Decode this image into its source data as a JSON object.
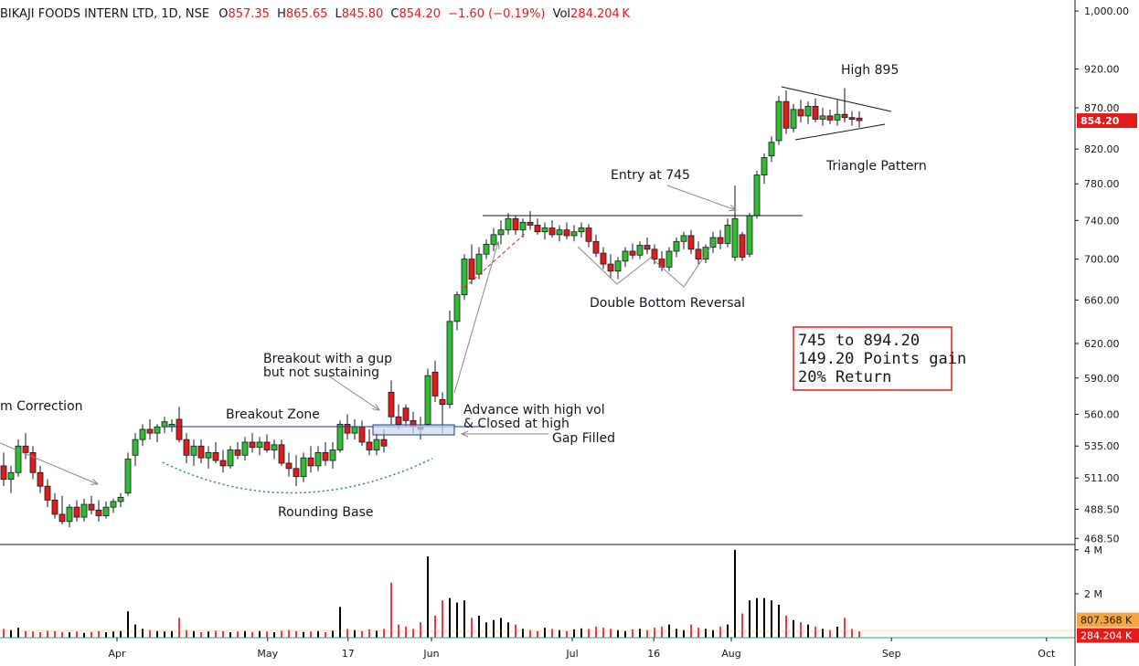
{
  "chart_data": {
    "type": "candlestick",
    "header": {
      "name": "BIKAJI FOODS INTERN LTD, 1D, NSE",
      "o": "O",
      "open": "857.35",
      "h": "H",
      "high": "865.65",
      "l": "L",
      "low": "845.80",
      "c": "C",
      "close": "854.20",
      "change": "−1.60 (−0.19%)",
      "vol": "Vol",
      "volume": "284.204 K"
    },
    "log_scale": true,
    "ylim": [
      465,
      1016
    ],
    "yticks": [
      {
        "value": 1000,
        "label": "1,000.00"
      },
      {
        "value": 920,
        "label": "920.00"
      },
      {
        "value": 870,
        "label": "870.00"
      },
      {
        "value": 820,
        "label": "820.00"
      },
      {
        "value": 780,
        "label": "780.00"
      },
      {
        "value": 740,
        "label": "740.00"
      },
      {
        "value": 700,
        "label": "700.00"
      },
      {
        "value": 660,
        "label": "660.00"
      },
      {
        "value": 620,
        "label": "620.00"
      },
      {
        "value": 590,
        "label": "590.00"
      },
      {
        "value": 560,
        "label": "560.00"
      },
      {
        "value": 535,
        "label": "535.00"
      },
      {
        "value": 511,
        "label": "511.00"
      },
      {
        "value": 488.5,
        "label": "488.50"
      },
      {
        "value": 468.5,
        "label": "468.50"
      }
    ],
    "xticks": [
      {
        "value": 15.5,
        "label": "Apr"
      },
      {
        "value": 36.1,
        "label": "May"
      },
      {
        "value": 47.1,
        "label": "17"
      },
      {
        "value": 58.5,
        "label": "Jun"
      },
      {
        "value": 77.75,
        "label": "Jul"
      },
      {
        "value": 88.9,
        "label": "16"
      },
      {
        "value": 99.5,
        "label": "Aug"
      },
      {
        "value": 121.4,
        "label": "Sep"
      },
      {
        "value": 142.6,
        "label": "Oct"
      }
    ],
    "up_color": "#2ebd2e",
    "down_color": "#e31b1b",
    "volume_up_color": "#000000",
    "volume_down_color": "#f23645",
    "candles": [
      [
        520,
        530,
        505,
        510
      ],
      [
        510,
        520,
        500,
        515
      ],
      [
        515,
        540,
        512,
        535
      ],
      [
        535,
        545,
        525,
        530
      ],
      [
        530,
        535,
        510,
        515
      ],
      [
        515,
        520,
        500,
        505
      ],
      [
        505,
        510,
        490,
        495
      ],
      [
        495,
        500,
        482,
        485
      ],
      [
        485,
        498,
        478,
        480
      ],
      [
        480,
        492,
        476,
        490
      ],
      [
        490,
        495,
        480,
        483
      ],
      [
        483,
        496,
        480,
        492
      ],
      [
        492,
        498,
        485,
        488
      ],
      [
        488,
        495,
        480,
        484
      ],
      [
        484,
        494,
        482,
        490
      ],
      [
        490,
        496,
        486,
        494
      ],
      [
        494,
        500,
        490,
        497
      ],
      [
        500,
        530,
        498,
        525
      ],
      [
        528,
        545,
        520,
        540
      ],
      [
        540,
        552,
        535,
        548
      ],
      [
        548,
        556,
        540,
        545
      ],
      [
        545,
        552,
        538,
        550
      ],
      [
        550,
        558,
        545,
        554
      ],
      [
        550,
        556,
        546,
        552
      ],
      [
        556,
        566,
        538,
        540
      ],
      [
        540,
        545,
        522,
        528
      ],
      [
        528,
        540,
        520,
        535
      ],
      [
        535,
        540,
        522,
        526
      ],
      [
        526,
        535,
        518,
        530
      ],
      [
        530,
        538,
        522,
        524
      ],
      [
        524,
        532,
        515,
        520
      ],
      [
        520,
        535,
        518,
        532
      ],
      [
        532,
        538,
        525,
        528
      ],
      [
        528,
        542,
        524,
        538
      ],
      [
        538,
        545,
        530,
        534
      ],
      [
        534,
        542,
        528,
        538
      ],
      [
        538,
        544,
        530,
        532
      ],
      [
        532,
        540,
        525,
        536
      ],
      [
        536,
        540,
        520,
        522
      ],
      [
        522,
        530,
        512,
        518
      ],
      [
        518,
        528,
        505,
        512
      ],
      [
        512,
        530,
        508,
        526
      ],
      [
        526,
        535,
        515,
        520
      ],
      [
        520,
        535,
        516,
        530
      ],
      [
        530,
        538,
        520,
        524
      ],
      [
        524,
        538,
        518,
        532
      ],
      [
        532,
        555,
        530,
        552
      ],
      [
        552,
        560,
        540,
        545
      ],
      [
        545,
        556,
        540,
        550
      ],
      [
        550,
        555,
        535,
        538
      ],
      [
        538,
        548,
        528,
        532
      ],
      [
        532,
        545,
        528,
        540
      ],
      [
        540,
        548,
        530,
        535
      ],
      [
        578,
        588,
        552,
        558
      ],
      [
        558,
        568,
        548,
        552
      ],
      [
        565,
        568,
        550,
        555
      ],
      [
        555,
        562,
        545,
        550
      ],
      [
        550,
        558,
        540,
        548
      ],
      [
        552,
        598,
        550,
        592
      ],
      [
        595,
        605,
        570,
        575
      ],
      [
        572,
        578,
        545,
        568
      ],
      [
        568,
        650,
        565,
        640
      ],
      [
        640,
        668,
        632,
        665
      ],
      [
        665,
        705,
        660,
        700
      ],
      [
        700,
        715,
        675,
        680
      ],
      [
        685,
        712,
        680,
        705
      ],
      [
        705,
        720,
        700,
        715
      ],
      [
        715,
        732,
        708,
        725
      ],
      [
        725,
        740,
        715,
        730
      ],
      [
        730,
        748,
        725,
        742
      ],
      [
        742,
        745,
        725,
        730
      ],
      [
        730,
        742,
        722,
        738
      ],
      [
        738,
        750,
        730,
        735
      ],
      [
        735,
        742,
        725,
        728
      ],
      [
        728,
        738,
        720,
        732
      ],
      [
        732,
        740,
        722,
        725
      ],
      [
        725,
        735,
        718,
        730
      ],
      [
        730,
        738,
        720,
        724
      ],
      [
        724,
        735,
        718,
        728
      ],
      [
        728,
        738,
        722,
        732
      ],
      [
        732,
        736,
        712,
        718
      ],
      [
        718,
        725,
        702,
        706
      ],
      [
        706,
        712,
        690,
        695
      ],
      [
        695,
        705,
        682,
        688
      ],
      [
        688,
        702,
        680,
        698
      ],
      [
        698,
        712,
        692,
        708
      ],
      [
        708,
        716,
        700,
        704
      ],
      [
        704,
        718,
        700,
        714
      ],
      [
        714,
        722,
        705,
        710
      ],
      [
        710,
        715,
        695,
        700
      ],
      [
        700,
        708,
        688,
        692
      ],
      [
        692,
        712,
        688,
        708
      ],
      [
        708,
        722,
        702,
        718
      ],
      [
        718,
        728,
        710,
        724
      ],
      [
        724,
        730,
        705,
        710
      ],
      [
        710,
        718,
        695,
        700
      ],
      [
        700,
        715,
        696,
        712
      ],
      [
        712,
        728,
        706,
        722
      ],
      [
        722,
        730,
        710,
        716
      ],
      [
        716,
        742,
        712,
        735
      ],
      [
        702,
        778,
        698,
        742
      ],
      [
        725,
        728,
        698,
        702
      ],
      [
        705,
        748,
        702,
        745
      ],
      [
        745,
        795,
        742,
        790
      ],
      [
        790,
        815,
        780,
        810
      ],
      [
        812,
        835,
        805,
        828
      ],
      [
        830,
        885,
        825,
        878
      ],
      [
        878,
        892,
        838,
        845
      ],
      [
        845,
        875,
        840,
        868
      ],
      [
        868,
        880,
        852,
        860
      ],
      [
        860,
        878,
        850,
        872
      ],
      [
        872,
        882,
        852,
        856
      ],
      [
        856,
        870,
        848,
        860
      ],
      [
        860,
        868,
        850,
        855
      ],
      [
        855,
        880,
        848,
        862
      ],
      [
        862,
        895,
        852,
        858
      ],
      [
        858,
        866,
        848,
        855.8
      ],
      [
        857.35,
        865.65,
        845.8,
        854.2
      ]
    ],
    "volume": [
      400000,
      350000,
      450000,
      300000,
      280000,
      250000,
      320000,
      300000,
      260000,
      240000,
      280000,
      220000,
      260000,
      300000,
      250000,
      280000,
      300000,
      1200000,
      600000,
      400000,
      350000,
      300000,
      280000,
      300000,
      900000,
      350000,
      300000,
      250000,
      280000,
      320000,
      300000,
      250000,
      280000,
      300000,
      260000,
      300000,
      280000,
      250000,
      320000,
      350000,
      300000,
      260000,
      280000,
      300000,
      250000,
      320000,
      1400000,
      400000,
      350000,
      300000,
      380000,
      320000,
      400000,
      2500000,
      600000,
      500000,
      400000,
      700000,
      3700000,
      1000000,
      1700000,
      1800000,
      1600000,
      1700000,
      900000,
      1000000,
      700000,
      800000,
      900000,
      700000,
      600000,
      400000,
      350000,
      300000,
      450000,
      400000,
      350000,
      300000,
      380000,
      420000,
      400000,
      500000,
      450000,
      400000,
      350000,
      300000,
      380000,
      400000,
      350000,
      450000,
      500000,
      600000,
      400000,
      350000,
      600000,
      450000,
      400000,
      350000,
      500000,
      600000,
      4000000,
      1100000,
      1700000,
      1800000,
      1800000,
      1700000,
      1500000,
      1000000,
      800000,
      700000,
      600000,
      500000,
      400000,
      350000,
      500000,
      900000,
      400000,
      284204
    ],
    "volume_ylim": [
      0,
      4200000
    ],
    "volume_yticks": [
      {
        "value": 4000000,
        "label": "4 M"
      },
      {
        "value": 2000000,
        "label": "2 M"
      }
    ],
    "last_price": {
      "value": 854.2,
      "label": "854.20"
    },
    "volume_ma_last": {
      "value": 807368,
      "label": "807.368 K",
      "color": "#f7a540"
    },
    "volume_last": {
      "value": 284204,
      "label": "284.204 K"
    },
    "annotations": [
      "m Correction",
      "Breakout Zone",
      "Breakout with a gup",
      "but not sustaining",
      "Advance with high vol",
      "& Closed at high",
      "Gap Filled",
      "Rounding Base",
      "Double Bottom Reversal",
      "Entry at 745",
      "High 895",
      "Triangle Pattern"
    ],
    "box_text": [
      "745 to 894.20",
      "149.20 Points gain",
      "20% Return"
    ]
  }
}
